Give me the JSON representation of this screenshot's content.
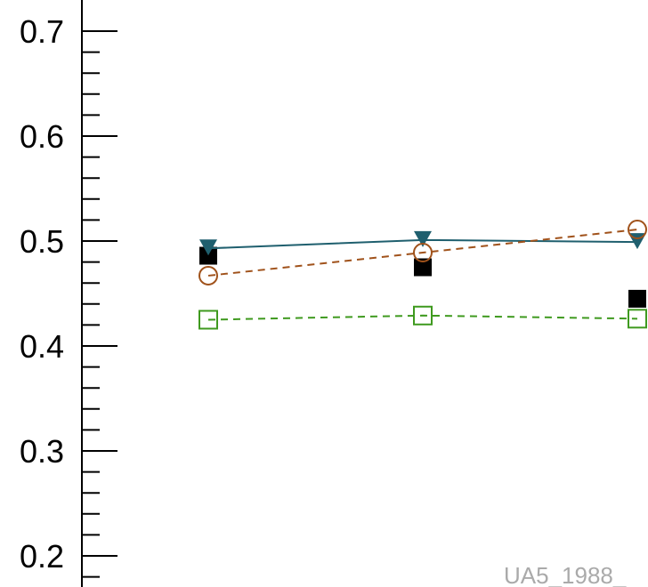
{
  "chart_data": {
    "type": "line",
    "title": "",
    "xlabel": "",
    "ylabel": "",
    "ylim": [
      0.2,
      0.7
    ],
    "yticks": [
      "0.2",
      "0.3",
      "0.4",
      "0.5",
      "0.6",
      "0.7"
    ],
    "x": [
      1,
      2,
      3
    ],
    "series": [
      {
        "marker": "filled-square",
        "line": "none",
        "color": "#000000",
        "values": [
          0.486,
          0.475,
          0.445
        ]
      },
      {
        "marker": "filled-triangle-down",
        "line": "solid",
        "color": "#1f5f6e",
        "values": [
          0.493,
          0.501,
          0.499
        ]
      },
      {
        "marker": "open-circle",
        "line": "dashed",
        "color": "#a0521b",
        "values": [
          0.467,
          0.489,
          0.511
        ]
      },
      {
        "marker": "open-square",
        "line": "dashed",
        "color": "#3f9a1f",
        "values": [
          0.425,
          0.429,
          0.426
        ]
      }
    ],
    "grid": false,
    "legend": "none",
    "watermark": "UA5_1988_"
  }
}
